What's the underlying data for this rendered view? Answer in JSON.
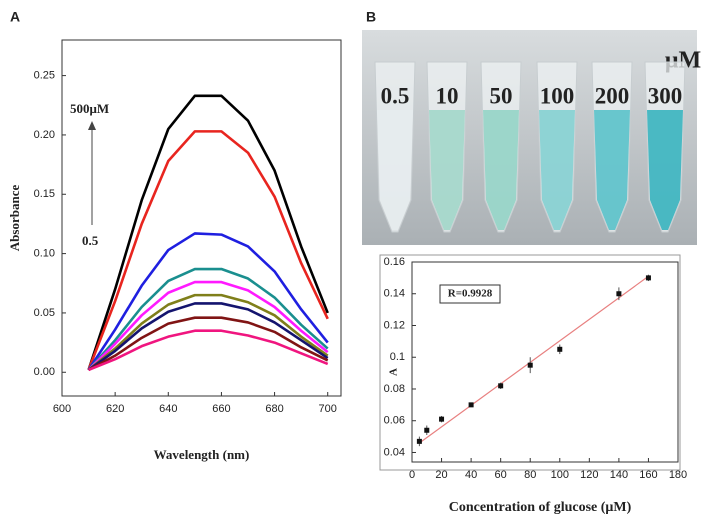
{
  "chart_data": [
    {
      "type": "line",
      "panel_label": "A",
      "xlabel": "Wavelength (nm)",
      "ylabel": "Absorbance",
      "annotations": [
        "500μM",
        "0.5"
      ],
      "x": [
        610,
        620,
        630,
        640,
        650,
        660,
        670,
        680,
        690,
        700
      ],
      "series": [
        {
          "color": "#000000",
          "values": [
            0.002,
            0.07,
            0.145,
            0.205,
            0.233,
            0.233,
            0.212,
            0.17,
            0.106,
            0.05
          ]
        },
        {
          "color": "#e8251f",
          "values": [
            0.002,
            0.06,
            0.125,
            0.178,
            0.203,
            0.203,
            0.185,
            0.148,
            0.092,
            0.045
          ]
        },
        {
          "color": "#1f1fe0",
          "values": [
            0.002,
            0.036,
            0.073,
            0.103,
            0.117,
            0.116,
            0.106,
            0.085,
            0.053,
            0.025
          ]
        },
        {
          "color": "#1a8f8f",
          "values": [
            0.002,
            0.027,
            0.055,
            0.077,
            0.087,
            0.087,
            0.079,
            0.063,
            0.04,
            0.02
          ]
        },
        {
          "color": "#ff1aff",
          "values": [
            0.002,
            0.024,
            0.048,
            0.067,
            0.076,
            0.076,
            0.069,
            0.055,
            0.035,
            0.017
          ]
        },
        {
          "color": "#7f7f1a",
          "values": [
            0.002,
            0.02,
            0.041,
            0.057,
            0.065,
            0.065,
            0.059,
            0.048,
            0.03,
            0.014
          ]
        },
        {
          "color": "#14146e",
          "values": [
            0.002,
            0.018,
            0.037,
            0.051,
            0.058,
            0.058,
            0.053,
            0.042,
            0.027,
            0.012
          ]
        },
        {
          "color": "#801414",
          "values": [
            0.002,
            0.014,
            0.029,
            0.041,
            0.046,
            0.046,
            0.042,
            0.034,
            0.021,
            0.01
          ]
        },
        {
          "color": "#f0157f",
          "values": [
            0.002,
            0.011,
            0.022,
            0.03,
            0.035,
            0.035,
            0.031,
            0.025,
            0.016,
            0.007
          ]
        }
      ],
      "xlim": [
        600,
        705
      ],
      "xticks": [
        600,
        620,
        640,
        660,
        680,
        700
      ],
      "ylim": [
        -0.02,
        0.28
      ],
      "yticks": [
        {
          "value": 0,
          "label": "0.00"
        },
        {
          "value": 0.05,
          "label": "0.05"
        },
        {
          "value": 0.1,
          "label": "0.10"
        },
        {
          "value": 0.15,
          "label": "0.15"
        },
        {
          "value": 0.2,
          "label": "0.20"
        },
        {
          "value": 0.25,
          "label": "0.25"
        }
      ]
    },
    {
      "type": "scatter",
      "xlabel": "Concentration  of glucose  (μM)",
      "ylabel": "A",
      "annotation": "R=0.9928",
      "color": "#111111",
      "fit_color": "#e88080",
      "x": [
        5,
        10,
        20,
        40,
        60,
        80,
        100,
        140,
        160
      ],
      "values": [
        0.047,
        0.054,
        0.061,
        0.07,
        0.082,
        0.095,
        0.105,
        0.14,
        0.15
      ],
      "errors": [
        0.003,
        0.003,
        0.002,
        0.001,
        0.002,
        0.005,
        0.003,
        0.004,
        0.002
      ],
      "fit": {
        "x": [
          5,
          160
        ],
        "values": [
          0.046,
          0.151
        ]
      },
      "xlim": [
        0,
        180
      ],
      "xticks": [
        0,
        20,
        40,
        60,
        80,
        100,
        120,
        140,
        160,
        180
      ],
      "ylim": [
        0.034,
        0.16
      ],
      "yticks": [
        0.04,
        0.06,
        0.08,
        0.1,
        0.12,
        0.14,
        0.16
      ]
    }
  ],
  "photo": {
    "panel_label": "B",
    "labels": [
      "0.5",
      "10",
      "50",
      "100",
      "200",
      "300"
    ],
    "unit": "μM"
  }
}
